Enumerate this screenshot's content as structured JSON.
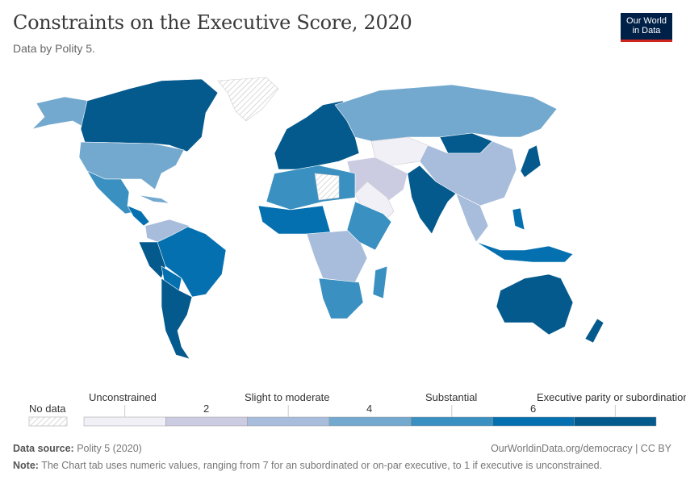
{
  "header": {
    "title": "Constraints on the Executive Score, 2020",
    "subtitle": "Data by Polity 5.",
    "logo_line1": "Our World",
    "logo_line2": "in Data"
  },
  "legend": {
    "no_data": "No data",
    "category_labels": [
      "Unconstrained",
      "Slight to moderate",
      "Substantial",
      "Executive parity or subordination"
    ],
    "tick_labels": [
      "2",
      "4",
      "6"
    ],
    "bins": [
      {
        "range": [
          1,
          2
        ],
        "color": "#f2f0f7"
      },
      {
        "range": [
          2,
          3
        ],
        "color": "#cbcbe2"
      },
      {
        "range": [
          3,
          4
        ],
        "color": "#a8bddb"
      },
      {
        "range": [
          4,
          5
        ],
        "color": "#74a9cf"
      },
      {
        "range": [
          5,
          6
        ],
        "color": "#3a90c0"
      },
      {
        "range": [
          6,
          7
        ],
        "color": "#0570b0"
      },
      {
        "range": [
          7,
          8
        ],
        "color": "#045a8d"
      }
    ]
  },
  "footer": {
    "source_label": "Data source:",
    "source": "Polity 5 (2020)",
    "url": "OurWorldinData.org/democracy | CC BY",
    "note_label": "Note:",
    "note": "The Chart tab uses numeric values, ranging from 7 for an subordinated or on-par executive, to 1 if executive is unconstrained."
  }
}
